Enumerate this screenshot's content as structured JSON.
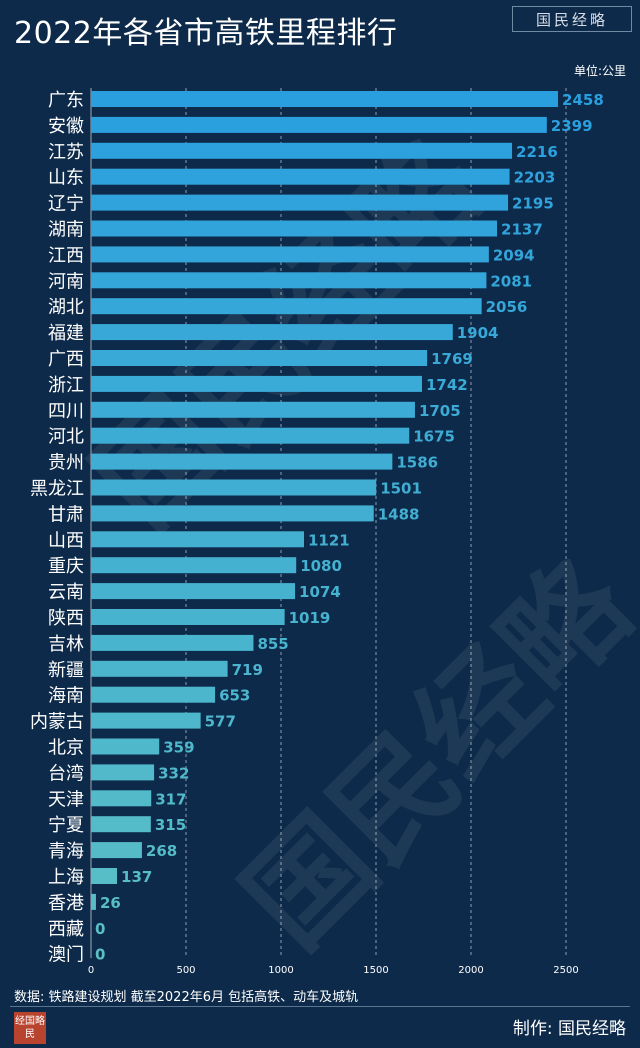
{
  "header": {
    "title": "2022年各省市高铁里程排行",
    "logo_text": "国民经略",
    "unit": "单位:公里"
  },
  "chart_data": {
    "type": "bar",
    "orientation": "horizontal",
    "categories": [
      "广东",
      "安徽",
      "江苏",
      "山东",
      "辽宁",
      "湖南",
      "江西",
      "河南",
      "湖北",
      "福建",
      "广西",
      "浙江",
      "四川",
      "河北",
      "贵州",
      "黑龙江",
      "甘肃",
      "山西",
      "重庆",
      "云南",
      "陕西",
      "吉林",
      "新疆",
      "海南",
      "内蒙古",
      "北京",
      "台湾",
      "天津",
      "宁夏",
      "青海",
      "上海",
      "香港",
      "西藏",
      "澳门"
    ],
    "values": [
      2458,
      2399,
      2216,
      2203,
      2195,
      2137,
      2094,
      2081,
      2056,
      1904,
      1769,
      1742,
      1705,
      1675,
      1586,
      1501,
      1488,
      1121,
      1080,
      1074,
      1019,
      855,
      719,
      653,
      577,
      359,
      332,
      317,
      315,
      268,
      137,
      26,
      0,
      0
    ],
    "xlim": [
      0,
      2700
    ],
    "x_ticks": [
      0,
      500,
      1000,
      1500,
      2000,
      2500
    ],
    "grid": "vertical dashed",
    "bar_colors": {
      "top": "#2a9fe0",
      "bottom": "#5bc0c4"
    },
    "label_color": "#4aa8e0"
  },
  "footer": {
    "source": "数据: 铁路建设规划 截至2022年6月 包括高铁、动车及城轨",
    "logo_text": "经国略民",
    "credit": "制作: 国民经略"
  },
  "watermark": {
    "text": "国民经略"
  }
}
